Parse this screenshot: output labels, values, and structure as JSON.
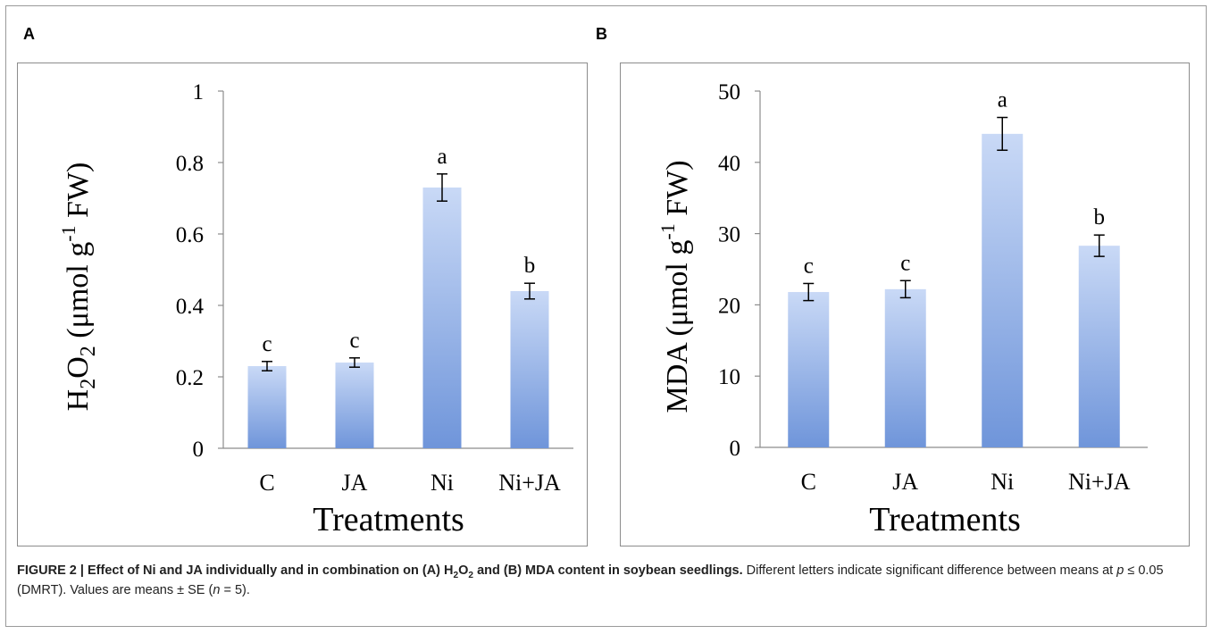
{
  "panels": {
    "a": {
      "letter": "A"
    },
    "b": {
      "letter": "B"
    }
  },
  "caption": {
    "fig_label": "FIGURE 2 | ",
    "bold_text": "Effect of Ni and JA individually and in combination on (A) H",
    "bold_sub1": "2",
    "bold_o": "O",
    "bold_sub2": "2",
    "bold_rest": " and (B) MDA content in soybean seedlings.",
    "normal_1": " Different letters indicate significant difference between means at ",
    "p_symbol": "p",
    "normal_2": " ≤ 0.05 (DMRT). Values are means ± SE (",
    "n_symbol": "n",
    "normal_3": " = 5)."
  },
  "colors": {
    "bar_top": "#c9d9f6",
    "bar_bottom": "#6f95da",
    "axis": "#8c8c8c",
    "text": "#000000"
  },
  "chart_data": [
    {
      "type": "bar",
      "panel": "A",
      "categories": [
        "C",
        "JA",
        "Ni",
        "Ni+JA"
      ],
      "values": [
        0.23,
        0.24,
        0.73,
        0.44
      ],
      "errors": [
        0.013,
        0.013,
        0.038,
        0.022
      ],
      "significance": [
        "c",
        "c",
        "a",
        "b"
      ],
      "ylabel_main": "H",
      "ylabel_sub1": "2",
      "ylabel_o": "O",
      "ylabel_sub2": "2",
      "ylabel_unit_pre": " (μmol g",
      "ylabel_sup": "-1",
      "ylabel_unit_post": " FW)",
      "xlabel": "Treatments",
      "ylim": [
        0,
        1
      ],
      "yticks": [
        "0",
        "0.2",
        "0.4",
        "0.6",
        "0.8",
        "1"
      ],
      "ytick_values": [
        0,
        0.2,
        0.4,
        0.6,
        0.8,
        1
      ],
      "grid": false
    },
    {
      "type": "bar",
      "panel": "B",
      "categories": [
        "C",
        "JA",
        "Ni",
        "Ni+JA"
      ],
      "values": [
        21.8,
        22.2,
        44.0,
        28.3
      ],
      "errors": [
        1.2,
        1.2,
        2.3,
        1.5
      ],
      "significance": [
        "c",
        "c",
        "a",
        "b"
      ],
      "ylabel_pre": "MDA (μmol g",
      "ylabel_sup": "-1",
      "ylabel_post": " FW)",
      "xlabel": "Treatments",
      "ylim": [
        0,
        50
      ],
      "yticks": [
        "0",
        "10",
        "20",
        "30",
        "40",
        "50"
      ],
      "ytick_values": [
        0,
        10,
        20,
        30,
        40,
        50
      ],
      "grid": false
    }
  ]
}
